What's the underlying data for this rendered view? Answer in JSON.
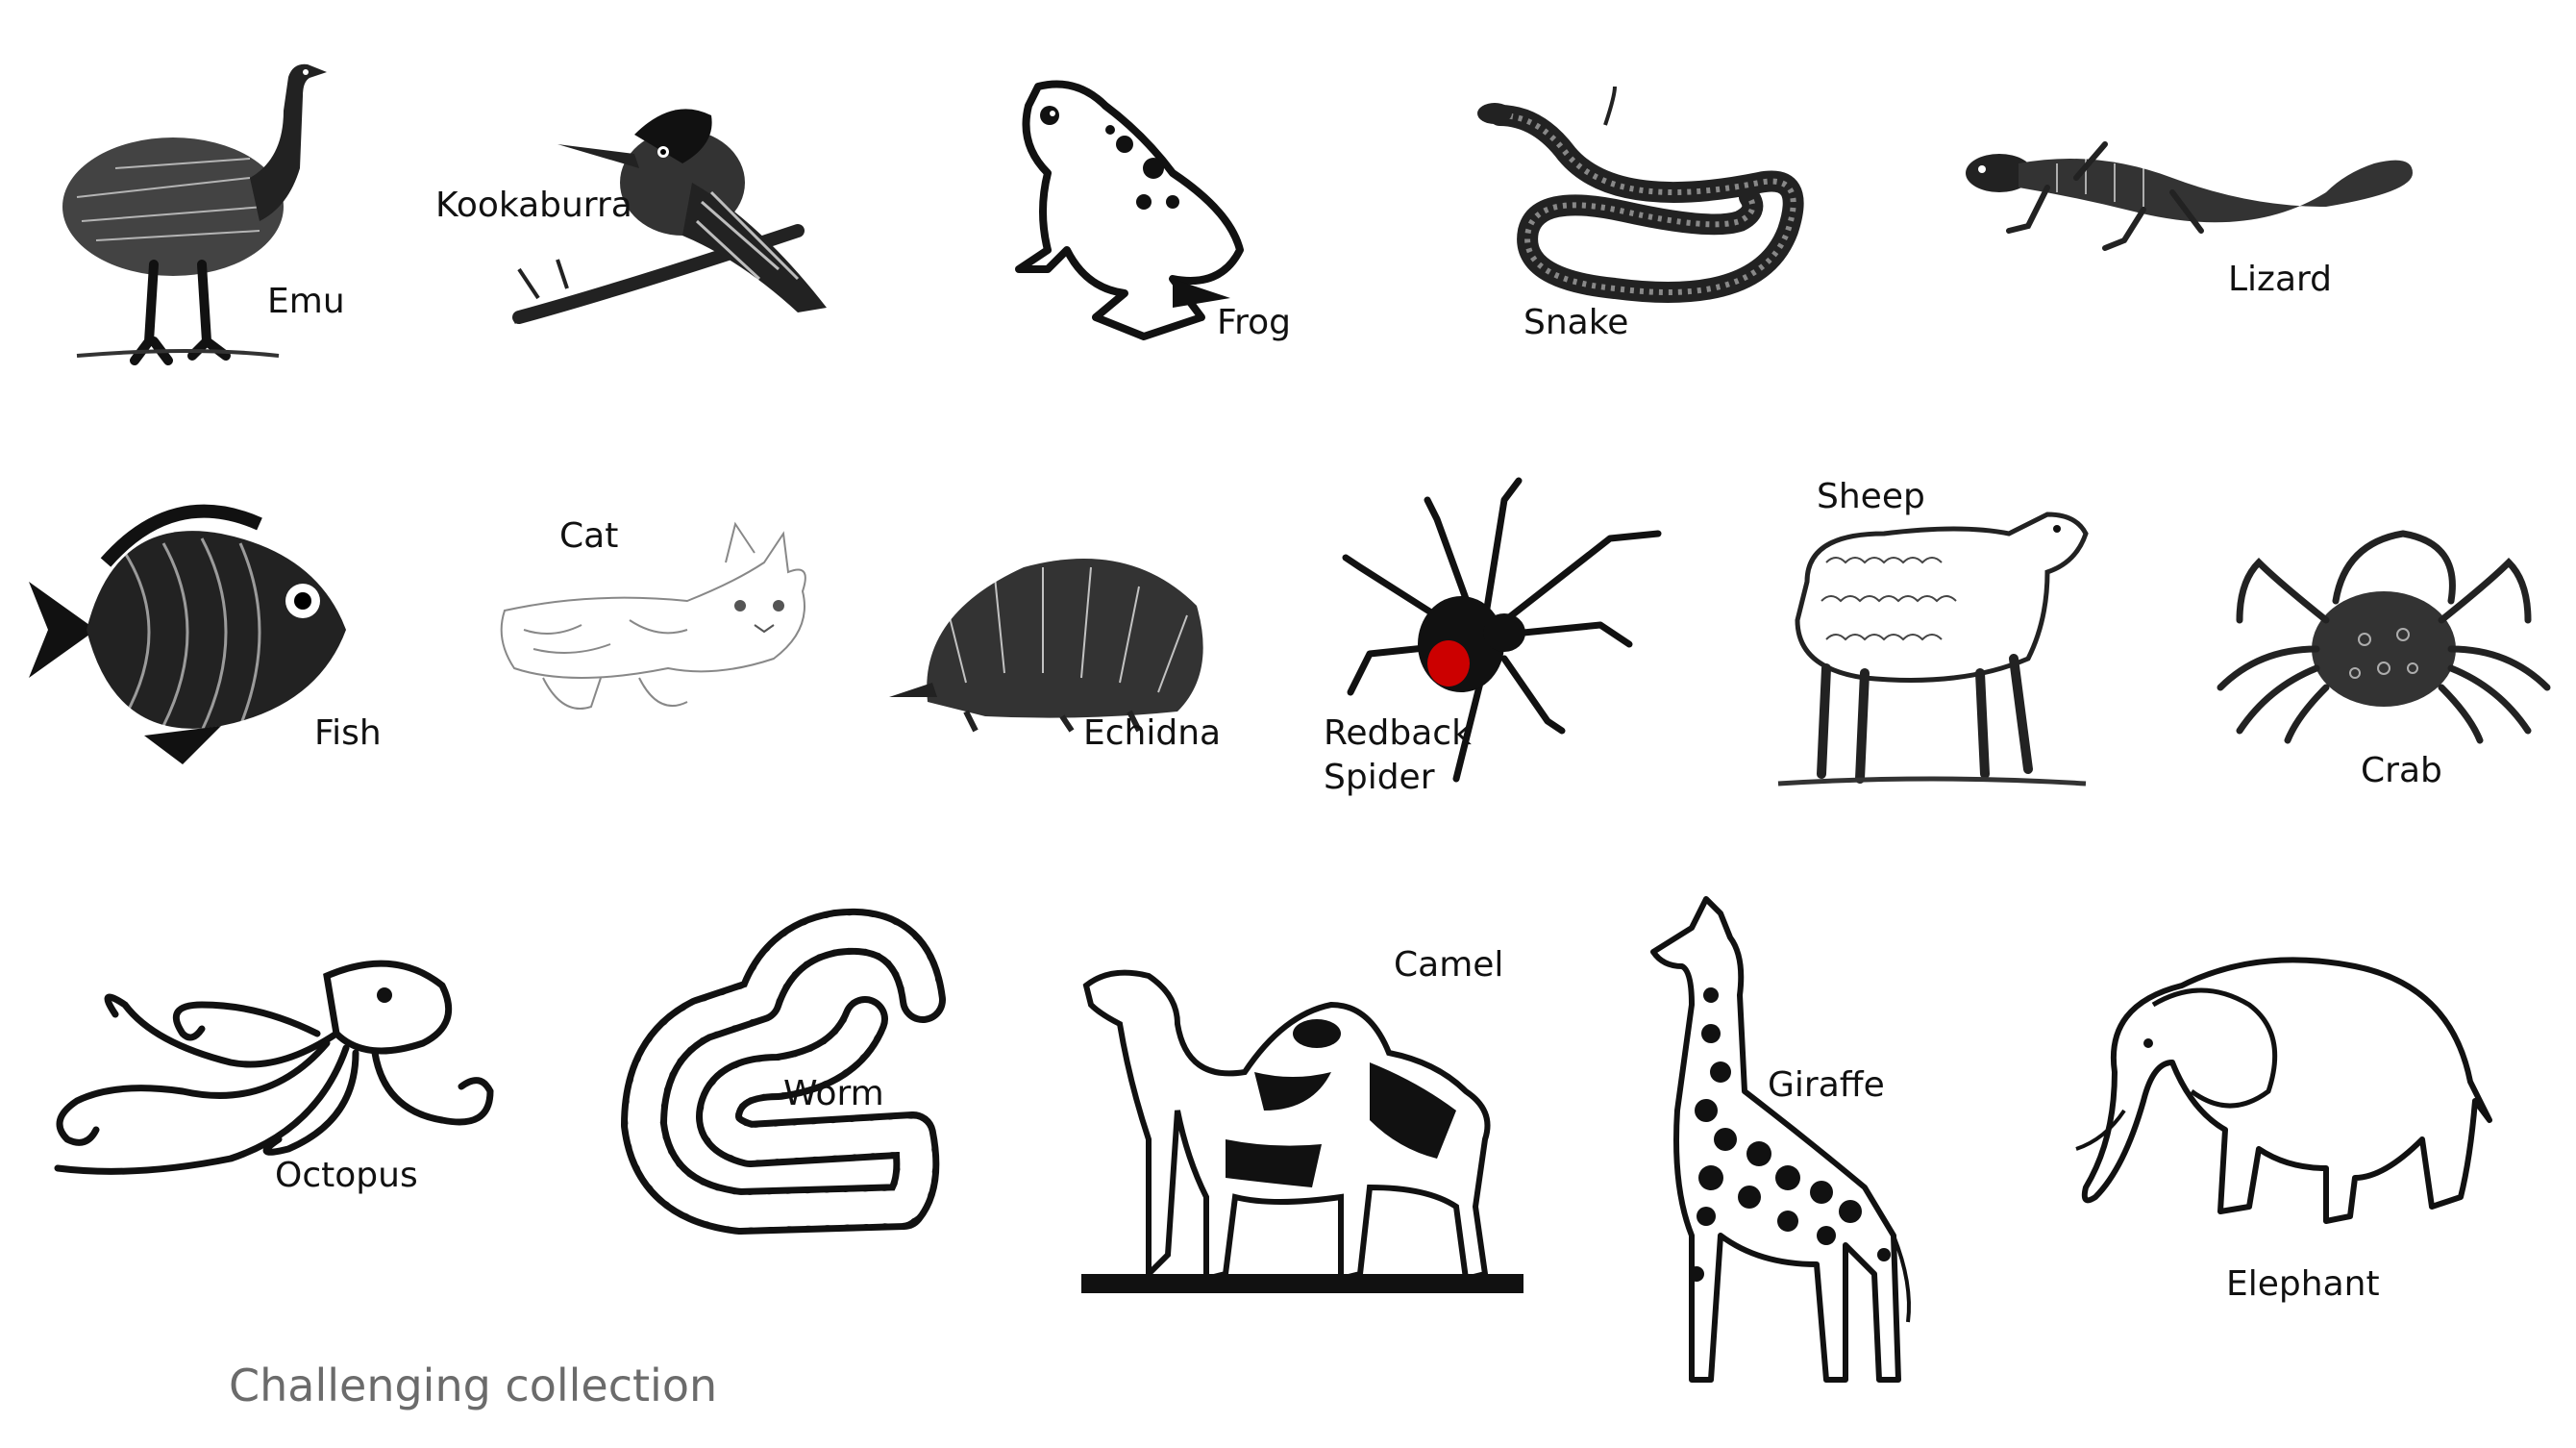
{
  "animals": {
    "emu": {
      "label": "Emu"
    },
    "kookaburra": {
      "label": "Kookaburra"
    },
    "frog": {
      "label": "Frog"
    },
    "snake": {
      "label": "Snake"
    },
    "lizard": {
      "label": "Lizard"
    },
    "fish": {
      "label": "Fish"
    },
    "cat": {
      "label": "Cat"
    },
    "echidna": {
      "label": "Echidna"
    },
    "redback_spider": {
      "label": "Redback\nSpider"
    },
    "sheep": {
      "label": "Sheep"
    },
    "crab": {
      "label": "Crab"
    },
    "octopus": {
      "label": "Octopus"
    },
    "worm": {
      "label": "Worm"
    },
    "camel": {
      "label": "Camel"
    },
    "giraffe": {
      "label": "Giraffe"
    },
    "elephant": {
      "label": "Elephant"
    }
  },
  "footer": {
    "text": "Challenging collection"
  },
  "colors": {
    "ink": "#111111",
    "spider_red": "#cc0000",
    "footer_grey": "#6b6b6b"
  }
}
